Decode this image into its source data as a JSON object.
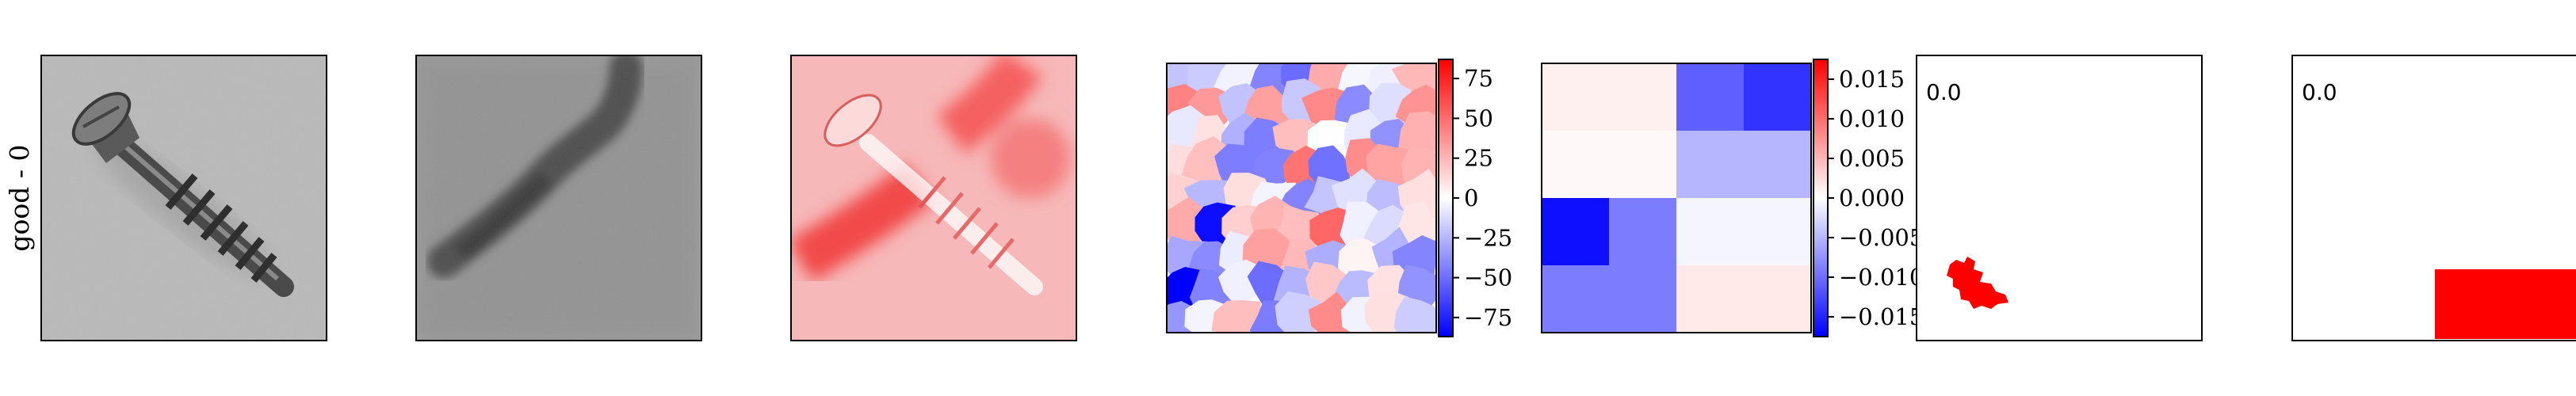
{
  "row_label": "good - 0",
  "panels": [
    {
      "name": "original-image"
    },
    {
      "name": "reconstruction-image"
    },
    {
      "name": "anomaly-overlay-image"
    },
    {
      "name": "superpixel-attribution-map",
      "colorbar": {
        "ticks": [
          "75",
          "50",
          "25",
          "0",
          "−25",
          "−50",
          "−75"
        ],
        "tick_values": [
          75,
          50,
          25,
          0,
          -25,
          -50,
          -75
        ],
        "range": [
          -87,
          87
        ]
      }
    },
    {
      "name": "grid-attribution-map",
      "colorbar": {
        "ticks": [
          "0.015",
          "0.010",
          "0.005",
          "0.000",
          "−0.005",
          "−0.010",
          "−0.015"
        ],
        "tick_values": [
          0.015,
          0.01,
          0.005,
          0,
          -0.005,
          -0.01,
          -0.015
        ],
        "range": [
          -0.0175,
          0.0175
        ]
      },
      "grid_values": [
        [
          0.001,
          0.001,
          -0.011,
          -0.014
        ],
        [
          0.0005,
          0.0005,
          -0.005,
          -0.005
        ],
        [
          -0.0165,
          -0.009,
          -0.0007,
          -0.0007
        ],
        [
          -0.009,
          -0.009,
          0.0015,
          0.0015
        ]
      ]
    },
    {
      "name": "superpixel-mask-panel",
      "score": "0.0"
    },
    {
      "name": "grid-mask-panel",
      "score": "0.0"
    }
  ],
  "colors": {
    "positive": "#ff0000",
    "negative": "#0000ff",
    "neutral": "#ffffff"
  }
}
